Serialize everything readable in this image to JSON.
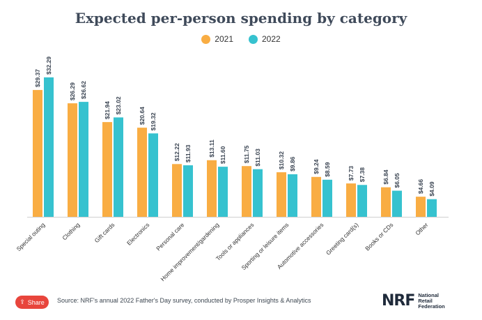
{
  "chart_data": {
    "type": "bar",
    "title": "Expected per-person spending by category",
    "categories": [
      "Special outing",
      "Clothing",
      "Gift cards",
      "Electronics",
      "Personal care",
      "Home improvement/gardening",
      "Tools or appliances",
      "Sporting or leisure items",
      "Automotive accessories",
      "Greeting card(s)",
      "Books or CDs",
      "Other"
    ],
    "series": [
      {
        "name": "2021",
        "color": "#f9ad43",
        "values": [
          29.37,
          26.29,
          21.94,
          20.64,
          12.22,
          13.11,
          11.75,
          10.32,
          9.24,
          7.73,
          6.84,
          4.66
        ],
        "labels": [
          "$29.37",
          "$26.29",
          "$21.94",
          "$20.64",
          "$12.22",
          "$13.11",
          "$11.75",
          "$10.32",
          "$9.24",
          "$7.73",
          "$6.84",
          "$4.66"
        ]
      },
      {
        "name": "2022",
        "color": "#36c2cf",
        "values": [
          32.29,
          26.62,
          23.02,
          19.32,
          11.93,
          11.6,
          11.03,
          9.86,
          8.59,
          7.38,
          6.05,
          4.09
        ],
        "labels": [
          "$32.29",
          "$26.62",
          "$23.02",
          "$19.32",
          "$11.93",
          "$11.60",
          "$11.03",
          "$9.86",
          "$8.59",
          "$7.38",
          "$6.05",
          "$4.09"
        ]
      }
    ],
    "ylim": [
      0,
      32.29
    ],
    "legend": "top-center",
    "grid": false
  },
  "footer": {
    "share_label": "Share",
    "share_icon": "share-icon",
    "source": "Source: NRF's annual 2022 Father's Day survey, conducted by Prosper Insights & Analytics",
    "logo_mark": "NRF",
    "logo_line1": "National",
    "logo_line2": "Retail",
    "logo_line3": "Federation"
  }
}
